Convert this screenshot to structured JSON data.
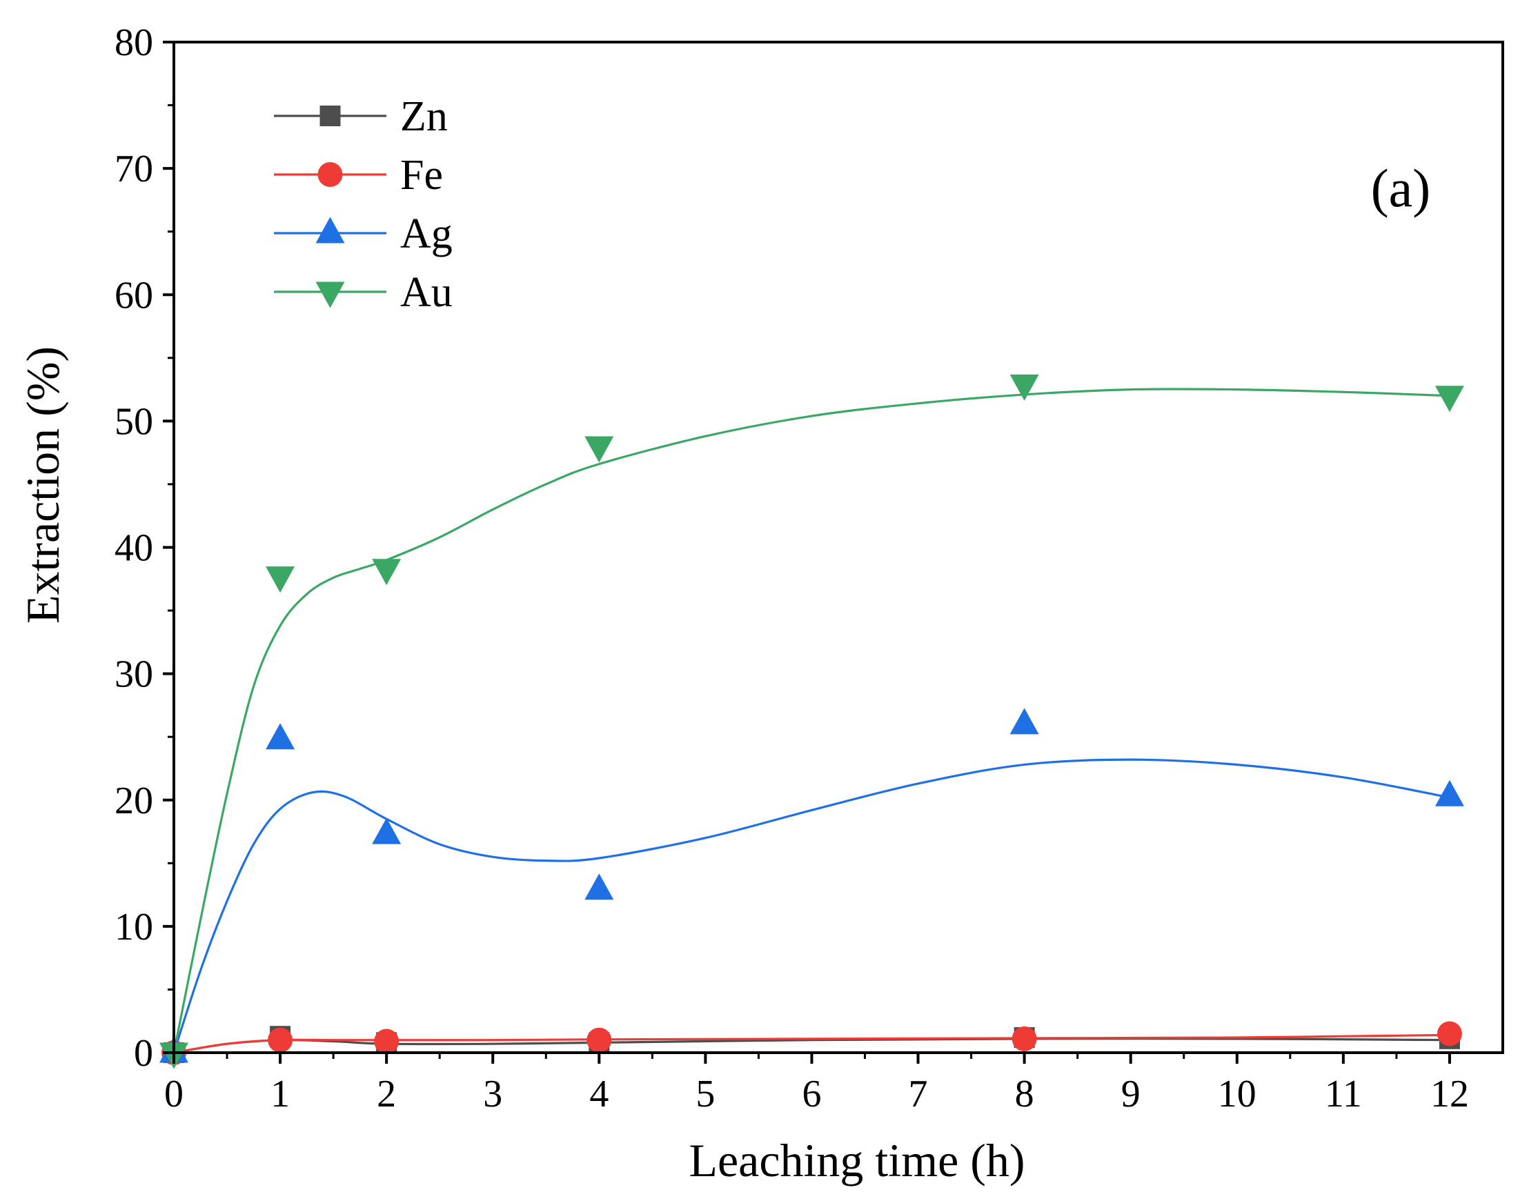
{
  "chart_data": {
    "type": "scatter",
    "title": "",
    "panel_label": "(a)",
    "xlabel": "Leaching time (h)",
    "ylabel": "Extraction (%)",
    "xlim": [
      0,
      12.5
    ],
    "ylim": [
      0,
      80
    ],
    "xticks": [
      0,
      1,
      2,
      3,
      4,
      5,
      6,
      7,
      8,
      9,
      10,
      11,
      12
    ],
    "xtick_labels": [
      "0",
      "1",
      "2",
      "3",
      "4",
      "5",
      "6",
      "7",
      "8",
      "9",
      "10",
      "11",
      "12"
    ],
    "yticks": [
      0,
      10,
      20,
      30,
      40,
      50,
      60,
      70,
      80
    ],
    "ytick_labels": [
      "0",
      "10",
      "20",
      "30",
      "40",
      "50",
      "60",
      "70",
      "80"
    ],
    "grid": false,
    "legend_position": "top-left",
    "series": [
      {
        "name": "Zn",
        "marker": "square",
        "color": "#4d4d4d",
        "x": [
          0,
          1,
          2,
          4,
          8,
          12
        ],
        "values": [
          0,
          1.3,
          0.8,
          0.8,
          1.2,
          1.1
        ],
        "fit_curve": [
          [
            0,
            0
          ],
          [
            0.5,
            0.7
          ],
          [
            1,
            1.0
          ],
          [
            1.5,
            0.9
          ],
          [
            2,
            0.7
          ],
          [
            3,
            0.7
          ],
          [
            4,
            0.8
          ],
          [
            6,
            1.0
          ],
          [
            8,
            1.1
          ],
          [
            10,
            1.1
          ],
          [
            12,
            1.0
          ]
        ]
      },
      {
        "name": "Fe",
        "marker": "circle",
        "color": "#ef3b36",
        "x": [
          0,
          1,
          2,
          4,
          8,
          12
        ],
        "values": [
          0,
          1.0,
          0.9,
          1.0,
          1.1,
          1.5
        ],
        "fit_curve": [
          [
            0,
            0
          ],
          [
            0.5,
            0.7
          ],
          [
            1,
            1.0
          ],
          [
            1.5,
            1.0
          ],
          [
            2,
            1.0
          ],
          [
            3,
            1.0
          ],
          [
            4,
            1.05
          ],
          [
            6,
            1.1
          ],
          [
            8,
            1.15
          ],
          [
            10,
            1.2
          ],
          [
            11,
            1.3
          ],
          [
            12,
            1.4
          ]
        ]
      },
      {
        "name": "Ag",
        "marker": "triangle-up",
        "color": "#1f6fe5",
        "x": [
          0,
          1,
          2,
          4,
          8,
          12
        ],
        "values": [
          0,
          24.8,
          17.3,
          12.9,
          26.0,
          20.3
        ],
        "fit_curve": [
          [
            0,
            0
          ],
          [
            0.25,
            6.5
          ],
          [
            0.5,
            12
          ],
          [
            0.75,
            16.5
          ],
          [
            1,
            19.3
          ],
          [
            1.3,
            20.6
          ],
          [
            1.6,
            20.3
          ],
          [
            2,
            18.5
          ],
          [
            2.5,
            16.5
          ],
          [
            3,
            15.5
          ],
          [
            3.5,
            15.2
          ],
          [
            4,
            15.4
          ],
          [
            5,
            17
          ],
          [
            6,
            19.2
          ],
          [
            7,
            21.3
          ],
          [
            8,
            22.8
          ],
          [
            9,
            23.2
          ],
          [
            10,
            22.8
          ],
          [
            11,
            21.8
          ],
          [
            12,
            20.2
          ]
        ]
      },
      {
        "name": "Au",
        "marker": "triangle-down",
        "color": "#3aa864",
        "x": [
          0,
          1,
          2,
          4,
          8,
          12
        ],
        "values": [
          0,
          37.7,
          38.3,
          48.0,
          52.9,
          52.0
        ],
        "fit_curve": [
          [
            0,
            0
          ],
          [
            0.25,
            10.5
          ],
          [
            0.5,
            20.5
          ],
          [
            0.75,
            29
          ],
          [
            1,
            33.8
          ],
          [
            1.25,
            36.3
          ],
          [
            1.5,
            37.6
          ],
          [
            1.75,
            38.3
          ],
          [
            2,
            39.0
          ],
          [
            2.5,
            40.8
          ],
          [
            3,
            43.0
          ],
          [
            3.5,
            45.0
          ],
          [
            4,
            46.6
          ],
          [
            5,
            48.8
          ],
          [
            6,
            50.4
          ],
          [
            7,
            51.4
          ],
          [
            8,
            52.1
          ],
          [
            9,
            52.5
          ],
          [
            10,
            52.5
          ],
          [
            11,
            52.3
          ],
          [
            12,
            52.0
          ]
        ]
      }
    ]
  }
}
